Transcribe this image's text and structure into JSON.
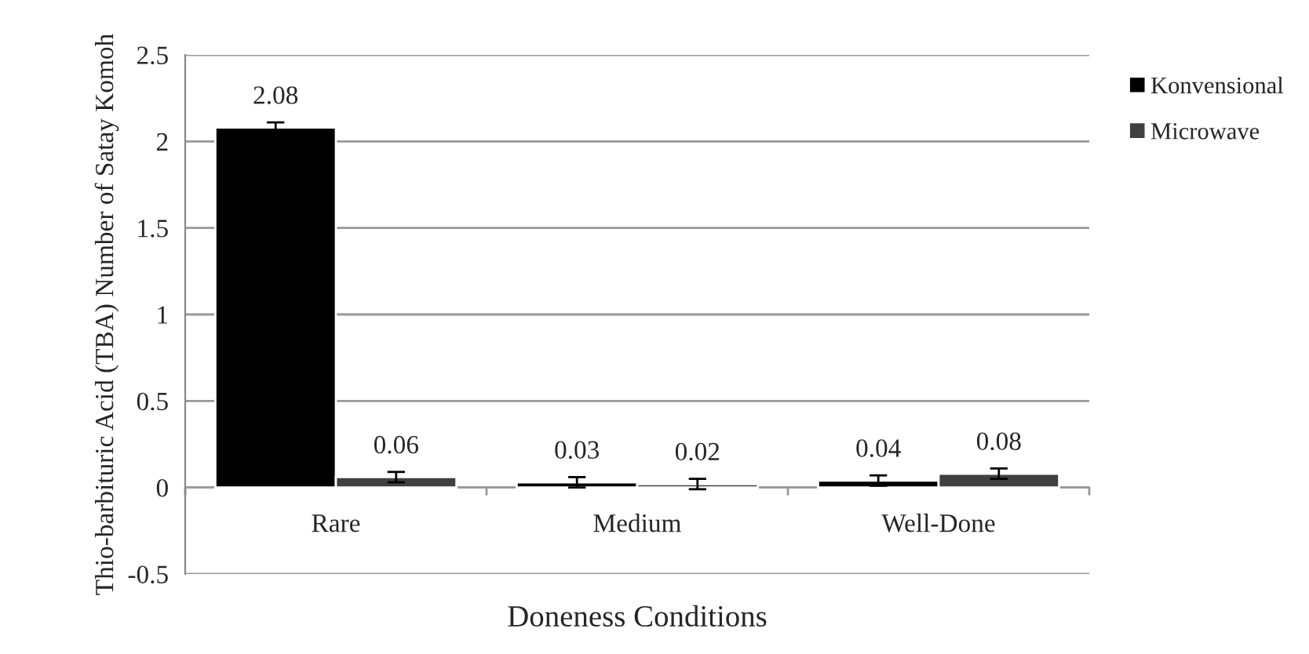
{
  "chart_data": {
    "type": "bar",
    "xlabel": "Doneness Conditions",
    "ylabel": "Thio-barbituric Acid (TBA) Number of Satay Komoh",
    "categories": [
      "Rare",
      "Medium",
      "Well-Done"
    ],
    "series": [
      {
        "name": "Konvensional",
        "color": "#000000",
        "values": [
          2.08,
          0.03,
          0.04
        ],
        "errors": [
          0.03,
          0.03,
          0.03
        ]
      },
      {
        "name": "Microwave",
        "color": "#404040",
        "values": [
          0.06,
          0.02,
          0.08
        ],
        "errors": [
          0.03,
          0.03,
          0.03
        ]
      }
    ],
    "ylim": [
      -0.5,
      2.5
    ],
    "yticks": [
      -0.5,
      0,
      0.5,
      1,
      1.5,
      2,
      2.5
    ],
    "grid": "y",
    "legend": "top right",
    "data_labels": true
  }
}
